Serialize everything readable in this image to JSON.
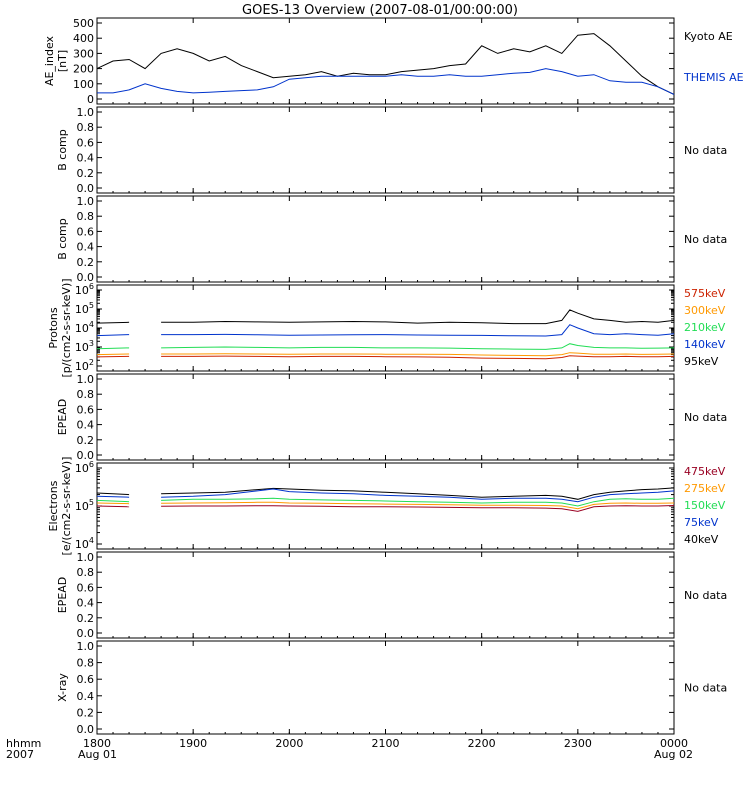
{
  "title": "GOES-13 Overview (2007-08-01/00:00:00)",
  "no_data_label": "No data",
  "time_axis": {
    "row1_label": "hhmm",
    "row2_label": "2007",
    "ticks": [
      "1800",
      "1900",
      "2000",
      "2100",
      "2200",
      "2300",
      "0000"
    ],
    "start_date": "Aug 01",
    "end_date": "Aug 02"
  },
  "colors": {
    "black": "#000000",
    "blue": "#0033cc",
    "green": "#22dd55",
    "orange": "#ff9900",
    "red": "#cc2200",
    "darkred": "#990022"
  },
  "chart_data": [
    {
      "type": "line",
      "ylabel": "AE_index [nT]",
      "ylim": [
        0,
        500
      ],
      "yticks": [
        "0",
        "100",
        "200",
        "300",
        "400",
        "500"
      ],
      "x": [
        1800,
        1810,
        1820,
        1830,
        1840,
        1850,
        1900,
        1910,
        1920,
        1930,
        1940,
        1950,
        2000,
        2010,
        2020,
        2030,
        2040,
        2050,
        2100,
        2110,
        2120,
        2130,
        2140,
        2150,
        2200,
        2210,
        2220,
        2230,
        2240,
        2250,
        2300,
        2310,
        2320,
        2330,
        2340,
        2350,
        0
      ],
      "series": [
        {
          "name": "Kyoto AE",
          "color": "black",
          "values": [
            200,
            250,
            260,
            200,
            300,
            330,
            300,
            250,
            280,
            220,
            180,
            140,
            150,
            160,
            180,
            150,
            170,
            160,
            160,
            180,
            190,
            200,
            220,
            230,
            350,
            300,
            330,
            310,
            350,
            300,
            420,
            430,
            350,
            250,
            150,
            80,
            30
          ]
        },
        {
          "name": "THEMIS AE",
          "color": "blue",
          "values": [
            40,
            40,
            60,
            100,
            70,
            50,
            40,
            45,
            50,
            55,
            60,
            80,
            130,
            140,
            150,
            150,
            150,
            150,
            150,
            160,
            150,
            150,
            160,
            150,
            150,
            160,
            170,
            175,
            200,
            180,
            150,
            160,
            120,
            110,
            110,
            80,
            30
          ]
        }
      ],
      "legend": [
        "Kyoto AE",
        "THEMIS AE"
      ]
    },
    {
      "type": "line",
      "ylabel": "B comp",
      "ylim": [
        0.0,
        1.0
      ],
      "yticks": [
        "0.0",
        "0.2",
        "0.4",
        "0.6",
        "0.8",
        "1.0"
      ],
      "series": [],
      "status": "No data"
    },
    {
      "type": "line",
      "ylabel": "B comp",
      "ylim": [
        0.0,
        1.0
      ],
      "yticks": [
        "0.0",
        "0.2",
        "0.4",
        "0.6",
        "0.8",
        "1.0"
      ],
      "series": [],
      "status": "No data"
    },
    {
      "type": "line",
      "ylabel_line1": "Protons",
      "ylabel_line2": "[p/(cm2-s-sr-keV)]",
      "yscale": "log",
      "ylim": [
        100,
        1000000
      ],
      "yticks": [
        {
          "base": "10",
          "exp": "2"
        },
        {
          "base": "10",
          "exp": "3"
        },
        {
          "base": "10",
          "exp": "4"
        },
        {
          "base": "10",
          "exp": "5"
        },
        {
          "base": "10",
          "exp": "6"
        }
      ],
      "x": [
        1800,
        1820,
        1830,
        1840,
        1900,
        1920,
        1940,
        2000,
        2020,
        2040,
        2100,
        2120,
        2140,
        2200,
        2220,
        2240,
        2250,
        2255,
        2300,
        2310,
        2320,
        2330,
        2340,
        2350,
        0
      ],
      "gap": [
        1825,
        1840
      ],
      "series": [
        {
          "name": "95keV",
          "color": "black",
          "values": [
            18000,
            20000,
            20000,
            20000,
            20000,
            22000,
            21000,
            20000,
            21000,
            22000,
            21000,
            18000,
            20000,
            19000,
            17000,
            17000,
            25000,
            90000,
            60000,
            30000,
            25000,
            20000,
            22000,
            20000,
            25000
          ]
        },
        {
          "name": "140keV",
          "color": "blue",
          "values": [
            4000,
            4500,
            4500,
            4500,
            4500,
            4600,
            4400,
            4200,
            4300,
            4400,
            4500,
            4300,
            4200,
            4100,
            3900,
            3800,
            4500,
            15000,
            10000,
            5000,
            4500,
            5000,
            4500,
            4200,
            5000
          ]
        },
        {
          "name": "210keV",
          "color": "green",
          "values": [
            800,
            900,
            900,
            900,
            950,
            1000,
            950,
            900,
            950,
            950,
            900,
            900,
            880,
            800,
            780,
            750,
            900,
            1500,
            1200,
            950,
            900,
            900,
            850,
            880,
            900
          ]
        },
        {
          "name": "300keV",
          "color": "orange",
          "values": [
            400,
            430,
            430,
            430,
            430,
            440,
            430,
            420,
            430,
            430,
            420,
            420,
            410,
            380,
            360,
            350,
            400,
            500,
            480,
            420,
            420,
            430,
            410,
            420,
            430
          ]
        },
        {
          "name": "575keV",
          "color": "red",
          "values": [
            300,
            320,
            320,
            320,
            320,
            330,
            320,
            310,
            320,
            320,
            310,
            300,
            290,
            260,
            250,
            240,
            280,
            350,
            330,
            310,
            310,
            320,
            310,
            310,
            320
          ]
        }
      ],
      "legend": [
        "575keV",
        "300keV",
        "210keV",
        "140keV",
        "95keV"
      ]
    },
    {
      "type": "line",
      "ylabel": "EPEAD",
      "ylim": [
        0.0,
        1.0
      ],
      "yticks": [
        "0.0",
        "0.2",
        "0.4",
        "0.6",
        "0.8",
        "1.0"
      ],
      "series": [],
      "status": "No data"
    },
    {
      "type": "line",
      "ylabel_line1": "Electrons",
      "ylabel_line2": "[e/(cm2-s-sr-keV)]",
      "yscale": "log",
      "ylim": [
        10000,
        1000000
      ],
      "yticks": [
        {
          "base": "10",
          "exp": "4"
        },
        {
          "base": "10",
          "exp": "5"
        },
        {
          "base": "10",
          "exp": "6"
        }
      ],
      "x": [
        1800,
        1820,
        1830,
        1840,
        1900,
        1920,
        1940,
        1950,
        2000,
        2020,
        2040,
        2100,
        2120,
        2140,
        2200,
        2220,
        2240,
        2250,
        2300,
        2310,
        2320,
        2330,
        2340,
        2350,
        0
      ],
      "gap": [
        1825,
        1840
      ],
      "series": [
        {
          "name": "40keV",
          "color": "black",
          "values": [
            220000,
            200000,
            210000,
            210000,
            220000,
            230000,
            270000,
            290000,
            280000,
            260000,
            250000,
            230000,
            210000,
            190000,
            170000,
            180000,
            190000,
            180000,
            150000,
            200000,
            230000,
            250000,
            270000,
            280000,
            300000
          ]
        },
        {
          "name": "75keV",
          "color": "blue",
          "values": [
            180000,
            170000,
            170000,
            170000,
            180000,
            200000,
            250000,
            280000,
            240000,
            220000,
            210000,
            190000,
            180000,
            170000,
            150000,
            160000,
            160000,
            150000,
            130000,
            170000,
            200000,
            210000,
            220000,
            230000,
            250000
          ]
        },
        {
          "name": "150keV",
          "color": "green",
          "values": [
            140000,
            130000,
            135000,
            140000,
            150000,
            150000,
            155000,
            160000,
            150000,
            145000,
            140000,
            135000,
            130000,
            125000,
            120000,
            125000,
            125000,
            120000,
            100000,
            130000,
            150000,
            155000,
            150000,
            150000,
            160000
          ]
        },
        {
          "name": "275keV",
          "color": "orange",
          "values": [
            120000,
            115000,
            115000,
            118000,
            120000,
            122000,
            125000,
            125000,
            120000,
            118000,
            115000,
            112000,
            110000,
            108000,
            105000,
            105000,
            103000,
            100000,
            85000,
            110000,
            118000,
            120000,
            118000,
            118000,
            120000
          ]
        },
        {
          "name": "475keV",
          "color": "darkred",
          "values": [
            100000,
            95000,
            95000,
            98000,
            100000,
            100000,
            102000,
            102000,
            100000,
            98000,
            96000,
            95000,
            94000,
            92000,
            90000,
            90000,
            88000,
            85000,
            72000,
            95000,
            100000,
            102000,
            100000,
            100000,
            103000
          ]
        }
      ],
      "legend": [
        "475keV",
        "275keV",
        "150keV",
        "75keV",
        "40keV"
      ]
    },
    {
      "type": "line",
      "ylabel": "EPEAD",
      "ylim": [
        0.0,
        1.0
      ],
      "yticks": [
        "0.0",
        "0.2",
        "0.4",
        "0.6",
        "0.8",
        "1.0"
      ],
      "series": [],
      "status": "No data"
    },
    {
      "type": "line",
      "ylabel": "X-ray",
      "ylim": [
        0.0,
        1.0
      ],
      "yticks": [
        "0.0",
        "0.2",
        "0.4",
        "0.6",
        "0.8",
        "1.0"
      ],
      "series": [],
      "status": "No data"
    }
  ]
}
